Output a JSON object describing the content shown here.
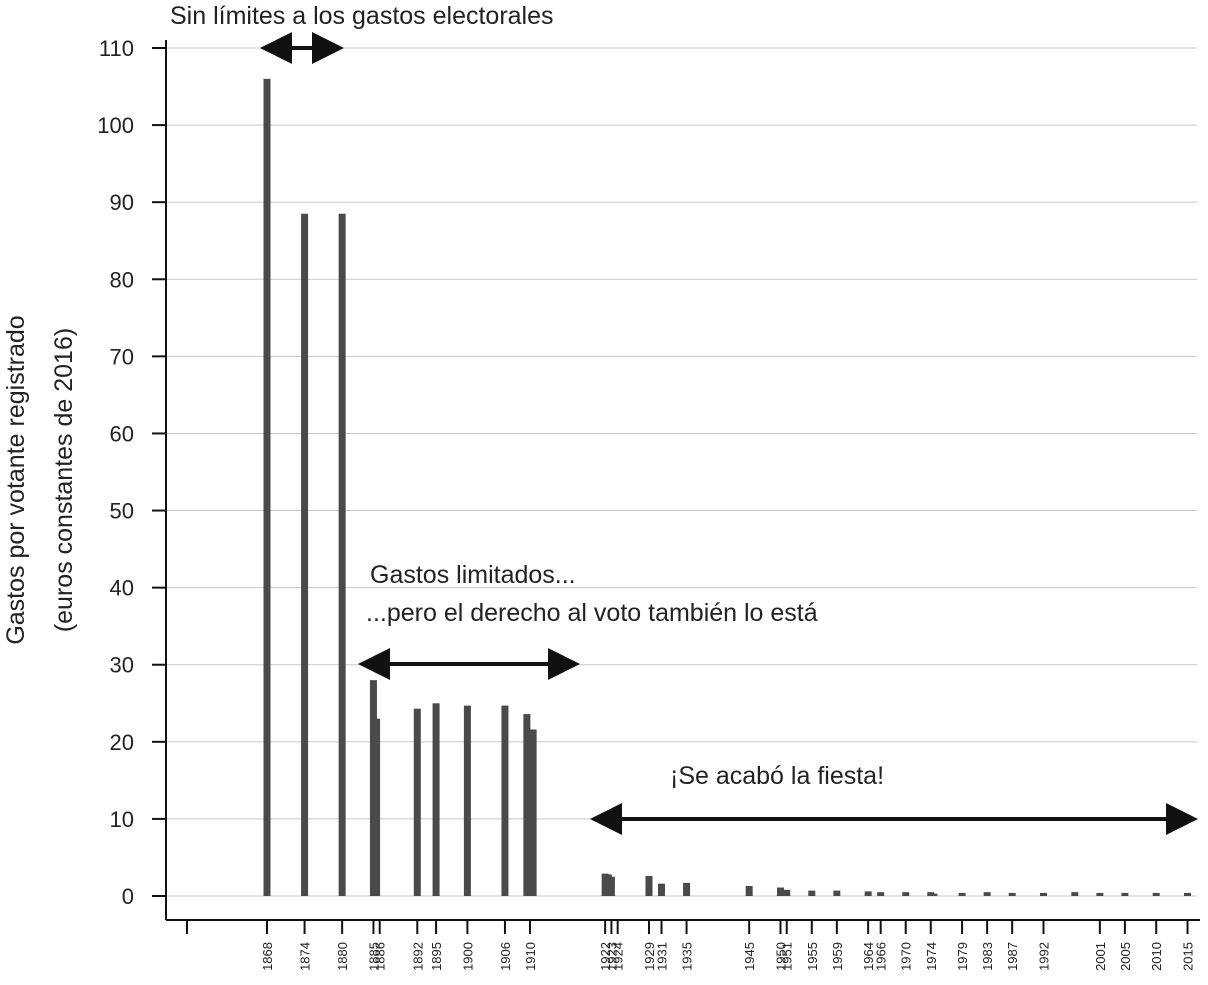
{
  "chart_data": {
    "type": "bar",
    "ylabel": "Gastos por votante registrado",
    "ylabel2": "(euros constantes de 2016)",
    "ylim": [
      0,
      110
    ],
    "yticks": [
      0,
      10,
      20,
      30,
      40,
      50,
      60,
      70,
      80,
      90,
      100,
      110
    ],
    "grid": true,
    "xticks": [
      "1868",
      "1874",
      "1880",
      "1885",
      "1886",
      "1892",
      "1895",
      "1900",
      "1906",
      "1910",
      "1922",
      "1923",
      "1924",
      "1929",
      "1931",
      "1935",
      "1945",
      "1950",
      "1951",
      "1955",
      "1959",
      "1964",
      "1966",
      "1970",
      "1974",
      "1979",
      "1983",
      "1987",
      "1992",
      "2001",
      "2005",
      "2010",
      "2015"
    ],
    "x": [
      1868,
      1874,
      1880,
      1885,
      1885.5,
      1892,
      1895,
      1900,
      1906,
      1909.5,
      1910.5,
      1922,
      1922.5,
      1923,
      1929,
      1931,
      1935,
      1945,
      1950,
      1951,
      1955,
      1959,
      1964,
      1966,
      1970,
      1974,
      1974.5,
      1979,
      1983,
      1987,
      1992,
      1997,
      2001,
      2005,
      2010,
      2015
    ],
    "values": [
      106,
      88.5,
      88.5,
      28,
      23,
      24.3,
      25,
      24.7,
      24.7,
      23.6,
      21.6,
      2.9,
      2.8,
      2.5,
      2.6,
      1.6,
      1.7,
      1.3,
      1.1,
      0.8,
      0.7,
      0.7,
      0.6,
      0.5,
      0.5,
      0.5,
      0.3,
      0.4,
      0.5,
      0.4,
      0.4,
      0.5,
      0.4,
      0.4,
      0.4,
      0.4
    ],
    "annotations": [
      {
        "text": "Sin límites a los gastos electorales"
      },
      {
        "text": "Gastos limitados..."
      },
      {
        "text": "...pero el derecho al voto también lo está"
      },
      {
        "text": "¡Se acabó la fiesta!"
      }
    ]
  },
  "colors": {
    "bar": "#4a4a4a",
    "grid": "#c8c8c8",
    "text": "#222222"
  }
}
